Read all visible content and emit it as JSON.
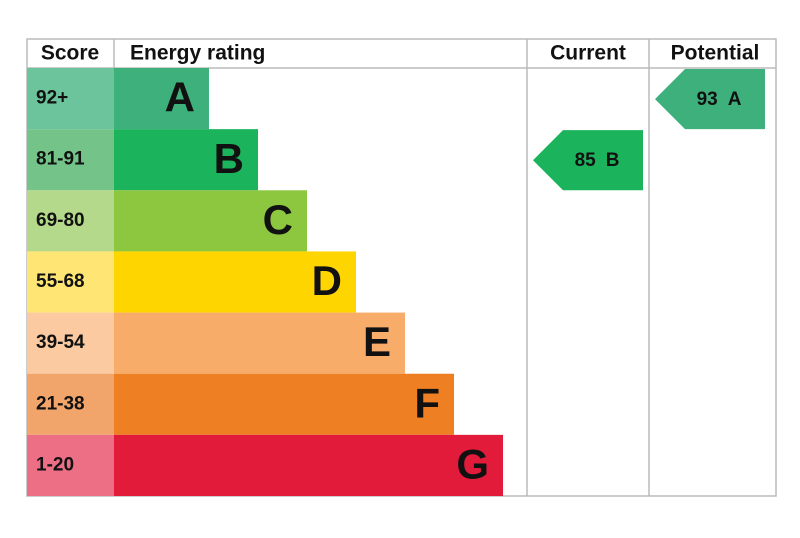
{
  "header": {
    "score": "Score",
    "rating": "Energy rating",
    "current": "Current",
    "potential": "Potential"
  },
  "bands": [
    {
      "score": "92+",
      "letter": "A",
      "color": "#3db07c",
      "score_color": "#6cc49c"
    },
    {
      "score": "81-91",
      "letter": "B",
      "color": "#1bb35b",
      "score_color": "#74c48a"
    },
    {
      "score": "69-80",
      "letter": "C",
      "color": "#8dc63f",
      "score_color": "#b5d98b"
    },
    {
      "score": "55-68",
      "letter": "D",
      "color": "#ffd500",
      "score_color": "#ffe574"
    },
    {
      "score": "39-54",
      "letter": "E",
      "color": "#f8ac6a",
      "score_color": "#fbcaa0"
    },
    {
      "score": "21-38",
      "letter": "F",
      "color": "#ee7f22",
      "score_color": "#f2a56a"
    },
    {
      "score": "1-20",
      "letter": "G",
      "color": "#e31b3b",
      "score_color": "#ec6f86"
    }
  ],
  "current": {
    "value": 85,
    "letter": "B"
  },
  "potential": {
    "value": 93,
    "letter": "A"
  }
}
